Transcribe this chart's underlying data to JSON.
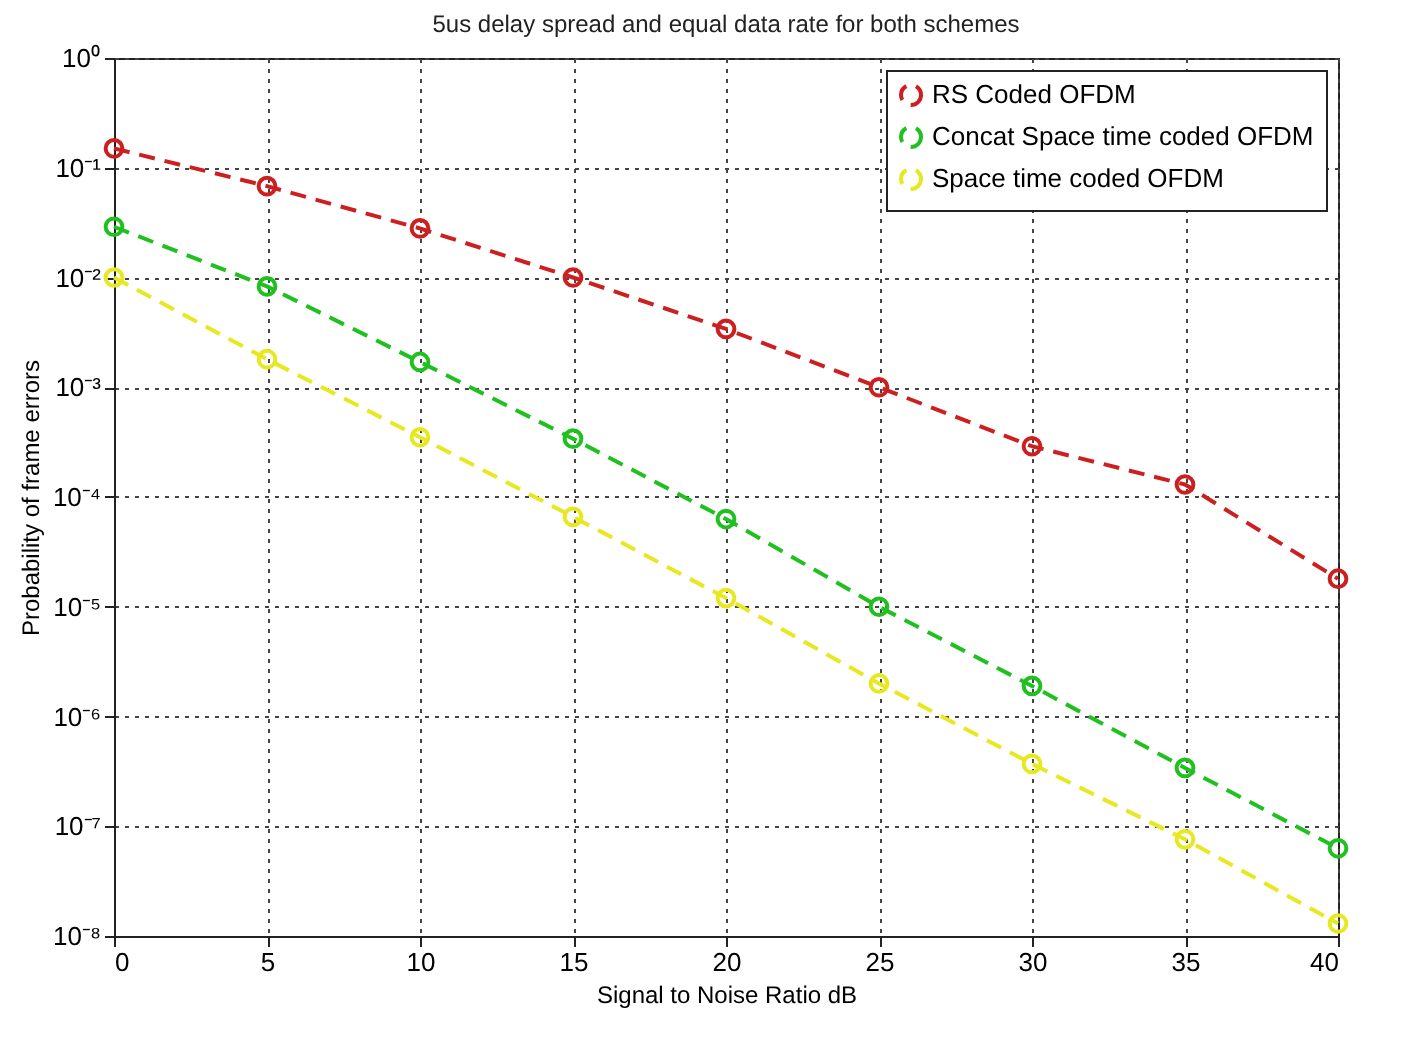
{
  "chart_data": {
    "type": "line",
    "title": "5us delay spread and equal data rate for both schemes",
    "xlabel": "Signal to Noise Ratio dB",
    "ylabel": "Probability of frame errors",
    "x": [
      0,
      5,
      10,
      15,
      20,
      25,
      30,
      35,
      40
    ],
    "series": [
      {
        "name": "RS Coded OFDM",
        "color": "#cc2020",
        "values": [
          0.15,
          0.068,
          0.028,
          0.01,
          0.0034,
          0.001,
          0.00029,
          0.00013,
          1.8e-05
        ]
      },
      {
        "name": "Concat Space time coded OFDM",
        "color": "#20c020",
        "values": [
          0.029,
          0.0083,
          0.0017,
          0.00034,
          6.3e-05,
          1e-05,
          1.9e-06,
          3.4e-07,
          6.3e-08
        ]
      },
      {
        "name": "Space time coded OFDM",
        "color": "#e8e820",
        "values": [
          0.01,
          0.0018,
          0.00035,
          6.6e-05,
          1.2e-05,
          2e-06,
          3.7e-07,
          7.6e-08,
          1.3e-08
        ]
      }
    ],
    "xlim": [
      0,
      40
    ],
    "xticks": [
      0,
      5,
      10,
      15,
      20,
      25,
      30,
      35,
      40
    ],
    "ylim": [
      1e-08,
      1
    ],
    "yticks": [
      {
        "value": 1e-08,
        "label": "10⁻⁸"
      },
      {
        "value": 1e-07,
        "label": "10⁻⁷"
      },
      {
        "value": 1e-06,
        "label": "10⁻⁶"
      },
      {
        "value": 1e-05,
        "label": "10⁻⁵"
      },
      {
        "value": 0.0001,
        "label": "10⁻⁴"
      },
      {
        "value": 0.001,
        "label": "10⁻³"
      },
      {
        "value": 0.01,
        "label": "10⁻²"
      },
      {
        "value": 0.1,
        "label": "10⁻¹"
      },
      {
        "value": 1,
        "label": "10⁰"
      }
    ],
    "log": "y",
    "grid": true,
    "legend": "top right",
    "marker": "circle",
    "line_style": "dashed"
  }
}
